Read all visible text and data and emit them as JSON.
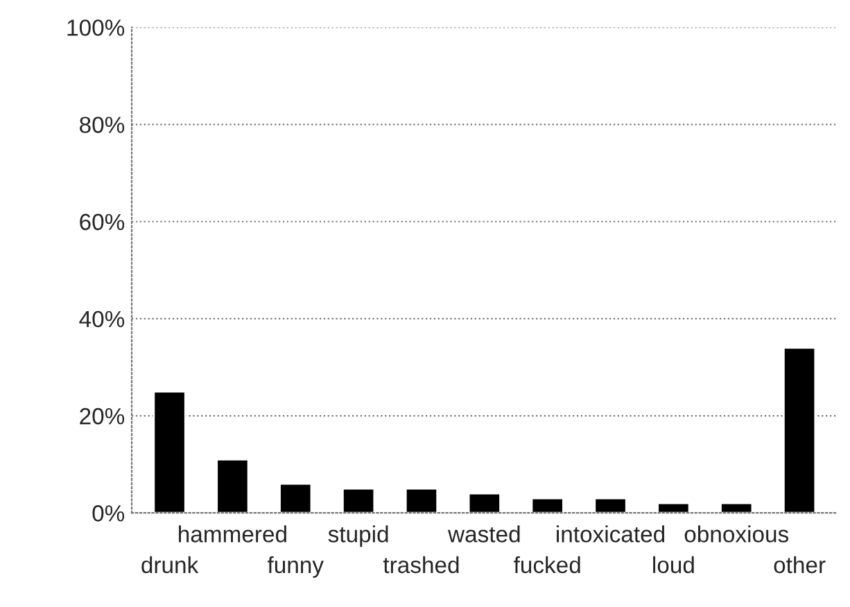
{
  "chart_data": {
    "type": "bar",
    "categories": [
      "drunk",
      "hammered",
      "funny",
      "stupid",
      "trashed",
      "wasted",
      "fucked",
      "intoxicated",
      "loud",
      "obnoxious",
      "other"
    ],
    "values": [
      25,
      11,
      6,
      5,
      5,
      4,
      3,
      3,
      2,
      2,
      34
    ],
    "color": "#000000",
    "ylim": [
      0,
      100
    ],
    "yticks": [
      {
        "value": 0,
        "label": "0%"
      },
      {
        "value": 20,
        "label": "20%"
      },
      {
        "value": 40,
        "label": "40%"
      },
      {
        "value": 60,
        "label": "60%"
      },
      {
        "value": 80,
        "label": "80%"
      },
      {
        "value": 100,
        "label": "100%"
      }
    ],
    "grid": "y",
    "legend": false
  }
}
